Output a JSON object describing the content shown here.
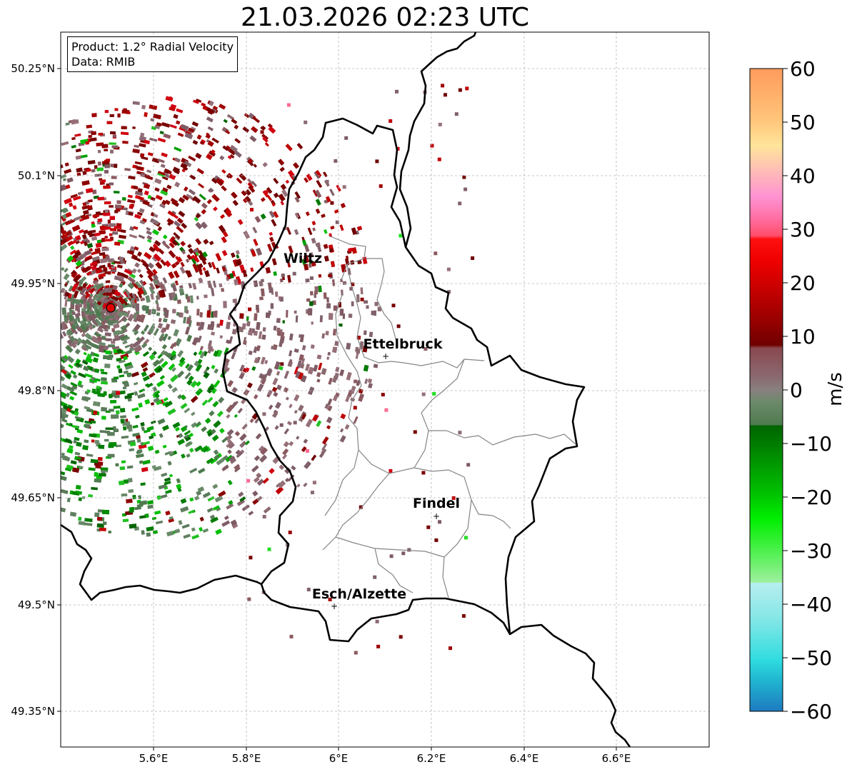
{
  "title": "21.03.2026 02:23 UTC",
  "info": {
    "product": "Product: 1.2° Radial Velocity",
    "data": "Data: RMIB"
  },
  "axes": {
    "lon_ticks": [
      "5.6°E",
      "5.8°E",
      "6°E",
      "6.2°E",
      "6.4°E",
      "6.6°E"
    ],
    "lat_ticks": [
      "50.25°N",
      "50.1°N",
      "49.95°N",
      "49.8°N",
      "49.65°N",
      "49.5°N",
      "49.35°N"
    ]
  },
  "cities": [
    {
      "name": "Wiltz"
    },
    {
      "name": "Ettelbruck"
    },
    {
      "name": "Findel"
    },
    {
      "name": "Esch/Alzette"
    }
  ],
  "colorbar": {
    "label": "m/s",
    "ticks": [
      "60",
      "50",
      "40",
      "30",
      "20",
      "10",
      "0",
      "−10",
      "−20",
      "−30",
      "−40",
      "−50",
      "−60"
    ]
  },
  "chart_data": {
    "type": "heatmap",
    "title": "21.03.2026 02:23 UTC",
    "product": "1.2° Radial Velocity",
    "source": "RMIB",
    "units": "m/s",
    "vmin": -60,
    "vmax": 60,
    "lon_range": [
      5.4,
      6.8
    ],
    "lat_range": [
      49.3,
      50.3
    ]
  },
  "colors": {
    "radar_site": "#e00000",
    "border_country": "#000000",
    "border_canton": "#808080"
  }
}
